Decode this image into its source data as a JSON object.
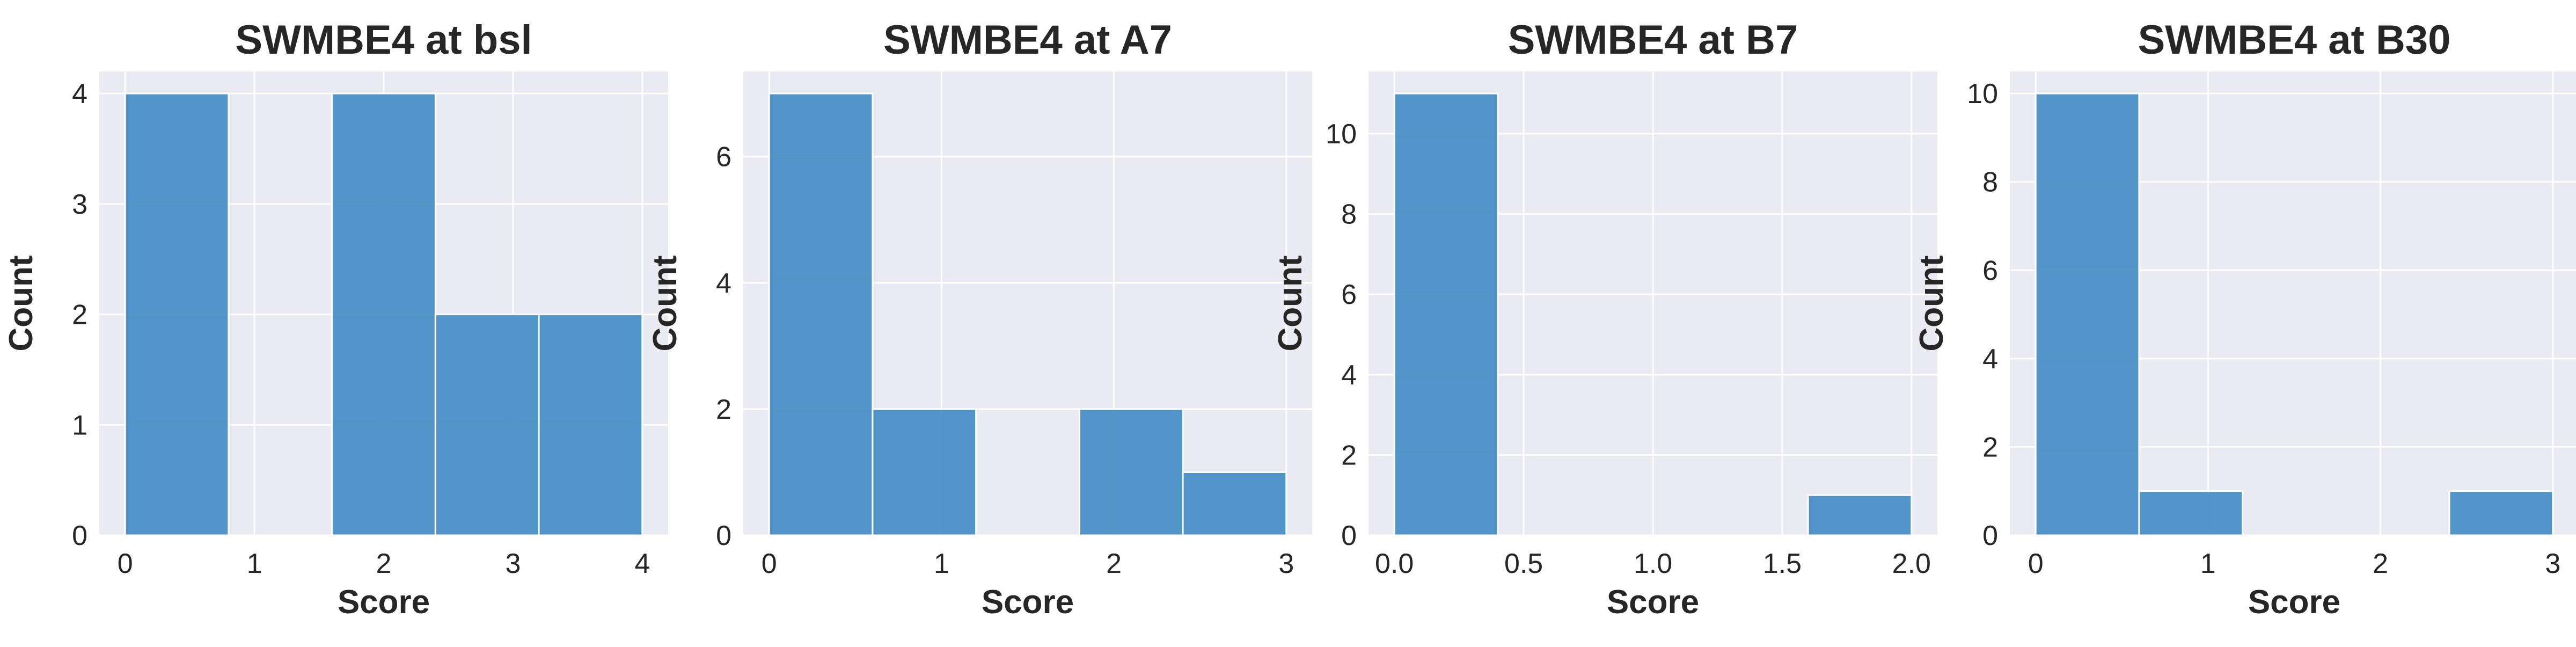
{
  "chart_data": [
    {
      "type": "bar",
      "title": "SWMBE4 at bsl",
      "xlabel": "Score",
      "ylabel": "Count",
      "bins": [
        {
          "x0": 0,
          "x1": 0.8,
          "count": 4
        },
        {
          "x0": 0.8,
          "x1": 1.6,
          "count": 0
        },
        {
          "x0": 1.6,
          "x1": 2.4,
          "count": 4
        },
        {
          "x0": 2.4,
          "x1": 3.2,
          "count": 2
        },
        {
          "x0": 3.2,
          "x1": 4.0,
          "count": 2
        }
      ],
      "xlim": [
        -0.2,
        4.2
      ],
      "ylim": [
        0,
        4.2
      ],
      "xticks": [
        0,
        1,
        2,
        3,
        4
      ],
      "xtick_labels": [
        "0",
        "1",
        "2",
        "3",
        "4"
      ],
      "yticks": [
        0,
        1,
        2,
        3,
        4
      ],
      "ytick_labels": [
        "0",
        "1",
        "2",
        "3",
        "4"
      ],
      "grid": true,
      "legend": false
    },
    {
      "type": "bar",
      "title": "SWMBE4 at A7",
      "xlabel": "Score",
      "ylabel": "Count",
      "bins": [
        {
          "x0": 0,
          "x1": 0.6,
          "count": 7
        },
        {
          "x0": 0.6,
          "x1": 1.2,
          "count": 2
        },
        {
          "x0": 1.2,
          "x1": 1.8,
          "count": 0
        },
        {
          "x0": 1.8,
          "x1": 2.4,
          "count": 2
        },
        {
          "x0": 2.4,
          "x1": 3.0,
          "count": 1
        }
      ],
      "xlim": [
        -0.15,
        3.15
      ],
      "ylim": [
        0,
        7.35
      ],
      "xticks": [
        0,
        1,
        2,
        3
      ],
      "xtick_labels": [
        "0",
        "1",
        "2",
        "3"
      ],
      "yticks": [
        0,
        2,
        4,
        6
      ],
      "ytick_labels": [
        "0",
        "2",
        "4",
        "6"
      ],
      "grid": true,
      "legend": false
    },
    {
      "type": "bar",
      "title": "SWMBE4 at B7",
      "xlabel": "Score",
      "ylabel": "Count",
      "bins": [
        {
          "x0": 0,
          "x1": 0.4,
          "count": 11
        },
        {
          "x0": 0.4,
          "x1": 0.8,
          "count": 0
        },
        {
          "x0": 0.8,
          "x1": 1.2,
          "count": 0
        },
        {
          "x0": 1.2,
          "x1": 1.6,
          "count": 0
        },
        {
          "x0": 1.6,
          "x1": 2.0,
          "count": 1
        }
      ],
      "xlim": [
        -0.1,
        2.1
      ],
      "ylim": [
        0,
        11.55
      ],
      "xticks": [
        0,
        0.5,
        1.0,
        1.5,
        2.0
      ],
      "xtick_labels": [
        "0.0",
        "0.5",
        "1.0",
        "1.5",
        "2.0"
      ],
      "yticks": [
        0,
        2,
        4,
        6,
        8,
        10
      ],
      "ytick_labels": [
        "0",
        "2",
        "4",
        "6",
        "8",
        "10"
      ],
      "grid": true,
      "legend": false
    },
    {
      "type": "bar",
      "title": "SWMBE4 at B30",
      "xlabel": "Score",
      "ylabel": "Count",
      "bins": [
        {
          "x0": 0,
          "x1": 0.6,
          "count": 10
        },
        {
          "x0": 0.6,
          "x1": 1.2,
          "count": 1
        },
        {
          "x0": 1.2,
          "x1": 1.8,
          "count": 0
        },
        {
          "x0": 1.8,
          "x1": 2.4,
          "count": 0
        },
        {
          "x0": 2.4,
          "x1": 3.0,
          "count": 1
        }
      ],
      "xlim": [
        -0.15,
        3.15
      ],
      "ylim": [
        0,
        10.5
      ],
      "xticks": [
        0,
        1,
        2,
        3
      ],
      "xtick_labels": [
        "0",
        "1",
        "2",
        "3"
      ],
      "yticks": [
        0,
        2,
        4,
        6,
        8,
        10
      ],
      "ytick_labels": [
        "0",
        "2",
        "4",
        "6",
        "8",
        "10"
      ],
      "grid": true,
      "legend": false
    }
  ],
  "colors": {
    "bar": "#3b87c0",
    "plot_background": "#eaeaf2",
    "grid": "#ffffff",
    "text": "#262626"
  }
}
